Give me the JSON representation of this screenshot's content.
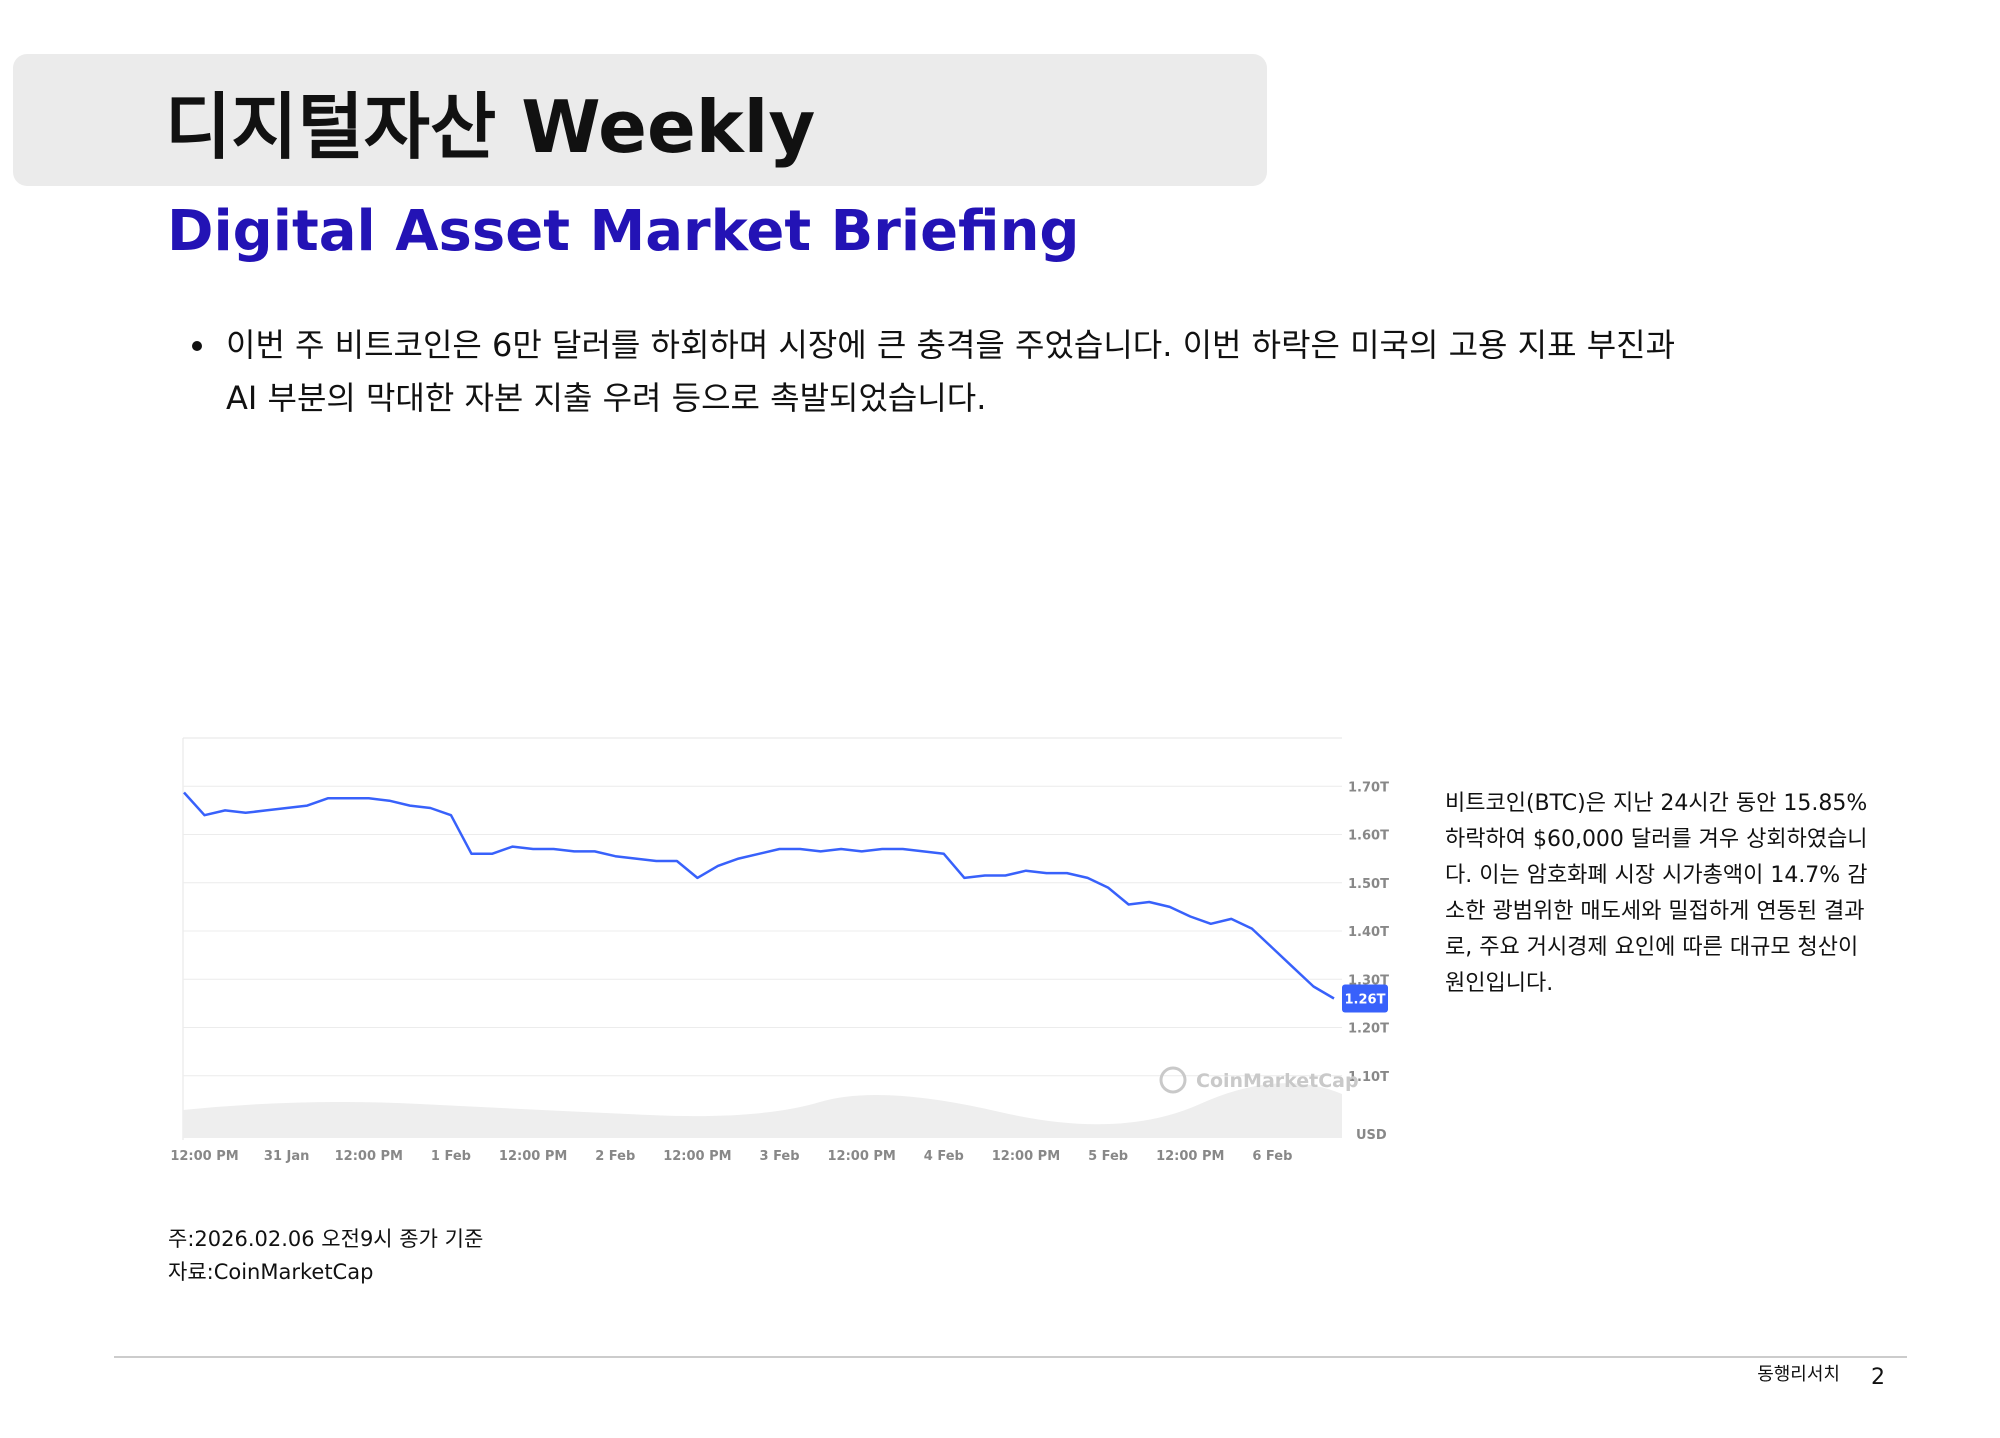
{
  "header": {
    "title": "디지털자산 Weekly",
    "subtitle": "Digital Asset Market Briefing"
  },
  "bullet": {
    "lines": [
      "이번 주 비트코인은 6만 달러를 하회하며 시장에 큰 충격을 주었습니다. 이번 하락은 미국의 고용 지표 부진과",
      "AI 부분의 막대한 자본 지출 우려 등으로 촉발되었습니다."
    ]
  },
  "chart_data": {
    "type": "line",
    "color": "#3861fb",
    "categories": [
      null,
      "12:00 PM",
      null,
      null,
      null,
      "31 Jan",
      null,
      null,
      null,
      "12:00 PM",
      null,
      null,
      null,
      "1 Feb",
      null,
      null,
      null,
      "12:00 PM",
      null,
      null,
      null,
      "2 Feb",
      null,
      null,
      null,
      "12:00 PM",
      null,
      null,
      null,
      "3 Feb",
      null,
      null,
      null,
      "12:00 PM",
      null,
      null,
      null,
      "4 Feb",
      null,
      null,
      null,
      "12:00 PM",
      null,
      null,
      null,
      "5 Feb",
      null,
      null,
      null,
      "12:00 PM",
      null,
      null,
      null,
      "6 Feb",
      null,
      null,
      null
    ],
    "values": [
      1.687,
      1.64,
      1.65,
      1.645,
      1.65,
      1.655,
      1.66,
      1.675,
      1.675,
      1.675,
      1.67,
      1.66,
      1.655,
      1.64,
      1.56,
      1.56,
      1.575,
      1.57,
      1.57,
      1.565,
      1.565,
      1.555,
      1.55,
      1.545,
      1.545,
      1.51,
      1.535,
      1.55,
      1.56,
      1.57,
      1.57,
      1.565,
      1.57,
      1.565,
      1.57,
      1.57,
      1.565,
      1.56,
      1.51,
      1.515,
      1.515,
      1.525,
      1.52,
      1.52,
      1.51,
      1.49,
      1.455,
      1.46,
      1.45,
      1.43,
      1.415,
      1.425,
      1.405,
      1.365,
      1.325,
      1.285,
      1.26
    ],
    "value_labels": [
      null,
      null,
      null,
      null,
      null,
      null,
      null,
      null,
      null,
      null,
      null,
      null,
      null,
      null,
      null,
      null,
      null,
      null,
      null,
      null,
      null,
      null,
      null,
      null,
      null,
      null,
      null,
      null,
      null,
      null,
      null,
      null,
      null,
      null,
      null,
      null,
      null,
      null,
      null,
      null,
      null,
      null,
      null,
      null,
      null,
      null,
      null,
      null,
      null,
      null,
      null,
      null,
      null,
      null,
      null,
      null,
      "1.26T"
    ],
    "ylim": [
      1.0,
      1.8
    ],
    "yticks": [
      {
        "value": 1.1,
        "label": "1.10T"
      },
      {
        "value": 1.2,
        "label": "1.20T"
      },
      {
        "value": 1.3,
        "label": "1.30T"
      },
      {
        "value": 1.4,
        "label": "1.40T"
      },
      {
        "value": 1.5,
        "label": "1.50T"
      },
      {
        "value": 1.6,
        "label": "1.60T"
      },
      {
        "value": 1.7,
        "label": "1.70T"
      }
    ],
    "grid": true,
    "unit_label": "USD",
    "watermark": "CoinMarketCap"
  },
  "side_note": {
    "lines": [
      "비트코인(BTC)은 지난 24시간 동안 15.85%",
      "하락하여 $60,000 달러를 겨우 상회하였습니",
      "다. 이는 암호화폐 시장 시가총액이 14.7% 감",
      "소한 광범위한 매도세와 밀접하게 연동된 결과",
      "로, 주요 거시경제 요인에 따른 대규모 청산이",
      "원인입니다."
    ]
  },
  "notes": [
    "주:2026.02.06 오전9시 종가 기준",
    "자료:CoinMarketCap"
  ],
  "footer": {
    "company": "동행리서치",
    "page": "2"
  }
}
